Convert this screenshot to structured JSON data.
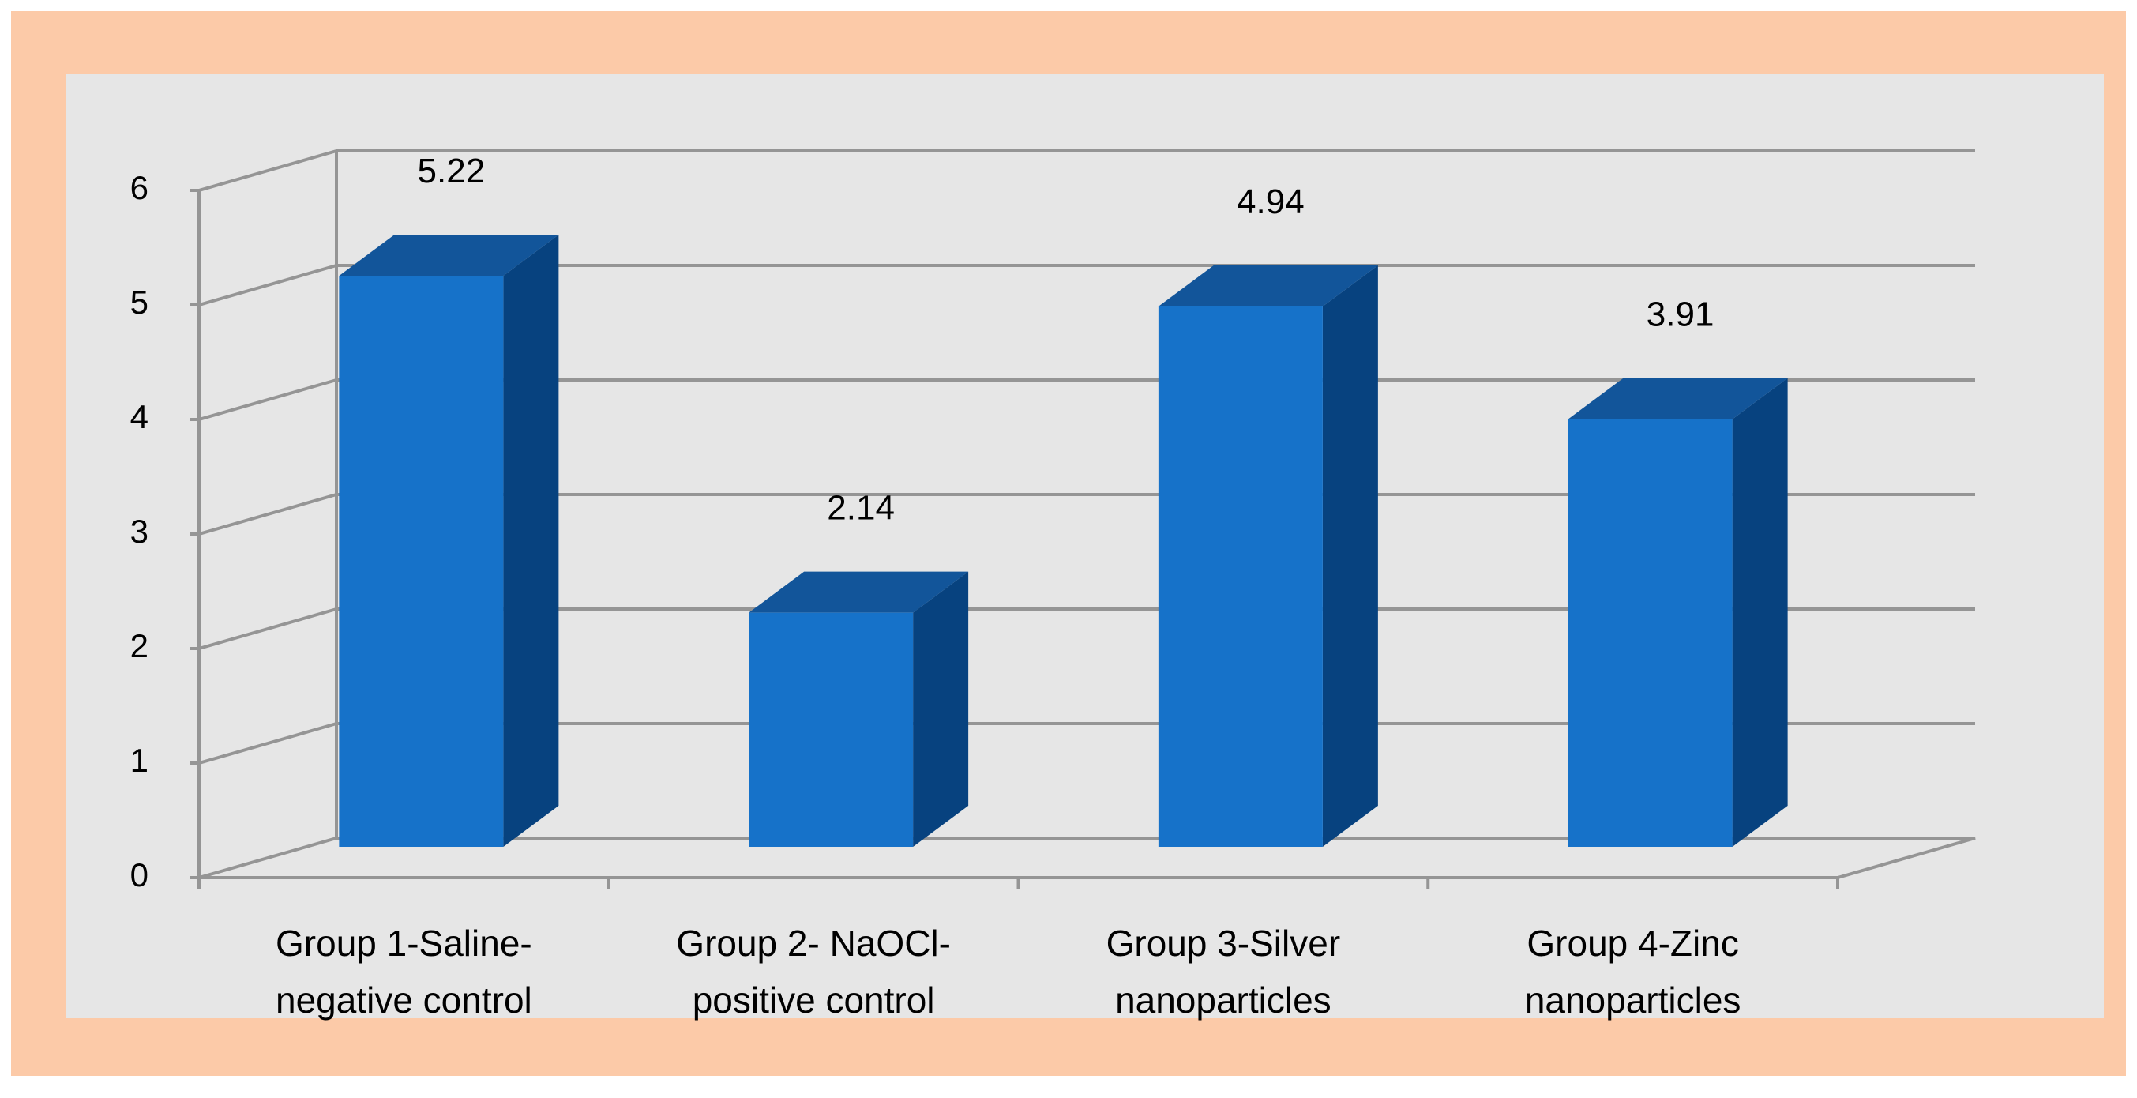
{
  "chart_data": {
    "type": "bar",
    "title": "",
    "xlabel": "",
    "ylabel": "",
    "categories": [
      [
        "Group 1-Saline-",
        "negative control"
      ],
      [
        "Group 2- NaOCl-",
        "positive control"
      ],
      [
        "Group 3-Silver",
        "nanoparticles"
      ],
      [
        "Group 4-Zinc",
        "nanoparticles"
      ]
    ],
    "values": [
      5.22,
      2.14,
      4.94,
      3.91
    ],
    "data_labels": [
      "5.22",
      "2.14",
      "4.94",
      "3.91"
    ],
    "ylim": [
      0,
      6
    ],
    "yticks": [
      "0",
      "1",
      "2",
      "3",
      "4",
      "5",
      "6"
    ],
    "grid": true,
    "legend": "none",
    "style": "3d-column"
  },
  "colors": {
    "frame": "#fccaa8",
    "plot_background": "#e6e6e6",
    "gridline": "#959595",
    "bar_front": "#1672c9",
    "bar_side": "#07427f",
    "bar_top": "#12559a",
    "text": "#000000"
  }
}
